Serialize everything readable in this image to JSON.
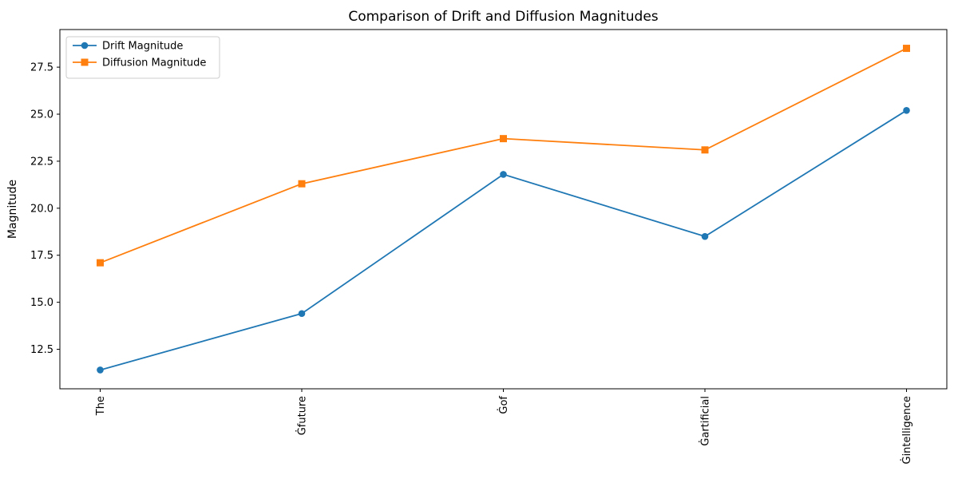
{
  "figure": {
    "background": "#ffffff",
    "axes_edge_color": "#000000",
    "legend_border_color": "#cccccc",
    "legend_background": "#ffffff"
  },
  "chart_data": {
    "type": "line",
    "title": "Comparison of Drift and Diffusion Magnitudes",
    "xlabel": "",
    "ylabel": "Magnitude",
    "categories": [
      "The",
      "Ġfuture",
      "Ġof",
      "Ġartificial",
      "Ġintelligence"
    ],
    "series": [
      {
        "name": "Drift Magnitude",
        "color": "#1f77b4",
        "marker": "circle",
        "values": [
          11.4,
          14.4,
          21.8,
          18.5,
          25.2
        ]
      },
      {
        "name": "Diffusion Magnitude",
        "color": "#ff7f0e",
        "marker": "square",
        "values": [
          17.1,
          21.3,
          23.7,
          23.1,
          28.5
        ]
      }
    ],
    "ylim": [
      10.4,
      29.5
    ],
    "yticks": [
      12.5,
      15.0,
      17.5,
      20.0,
      22.5,
      25.0,
      27.5
    ],
    "x_tick_rotation": 90,
    "grid": false,
    "legend_position": "upper left"
  }
}
